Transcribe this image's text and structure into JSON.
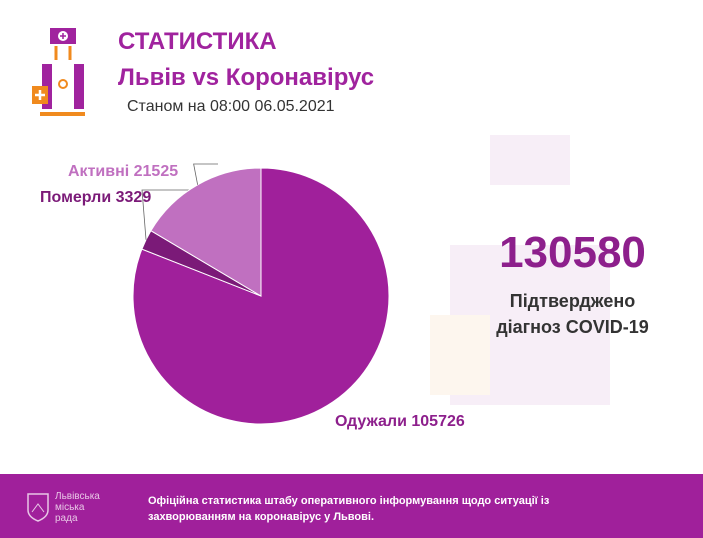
{
  "header": {
    "title": "СТАТИСТИКА",
    "subtitle": "Львів vs Коронавірус",
    "date": "Станом на 08:00 06.05.2021"
  },
  "summary": {
    "total": "130580",
    "label_line1": "Підтверджено",
    "label_line2": "діагноз COVID-19"
  },
  "chart_data": {
    "type": "pie",
    "title": "",
    "slices": [
      {
        "name": "Одужали",
        "value": 105726,
        "label": "Одужали 105726",
        "color": "#a0209b"
      },
      {
        "name": "Померли",
        "value": 3329,
        "label": "Померли 3329",
        "color": "#7b1a78"
      },
      {
        "name": "Активні",
        "value": 21525,
        "label": "Активні 21525",
        "color": "#c070c0"
      }
    ]
  },
  "footer": {
    "city_line1": "Львівська",
    "city_line2": "міська",
    "city_line3": "рада",
    "text": "Офіційна статистика штабу оперативного інформування щодо ситуації із захворюванням на коронавірус у Львові."
  }
}
